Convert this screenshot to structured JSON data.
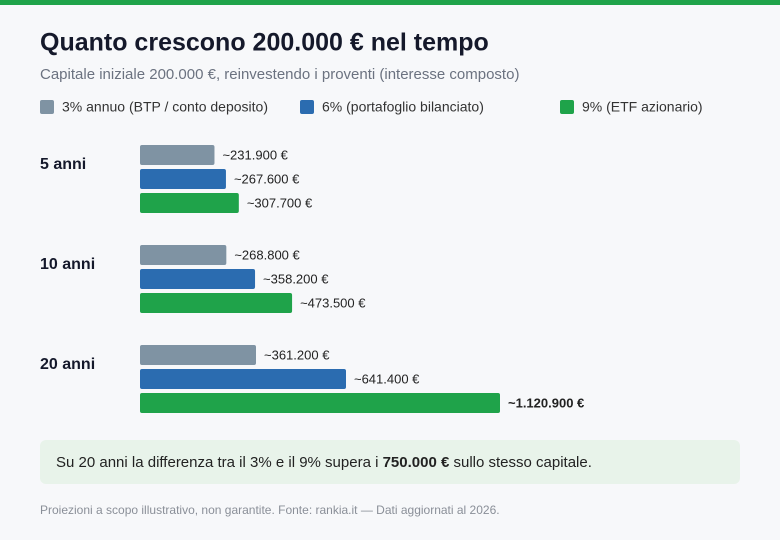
{
  "chart_data": {
    "type": "bar",
    "orientation": "horizontal",
    "title": "Quanto crescono 200.000 € nel tempo",
    "subtitle": "Capitale iniziale 200.000 €, reinvestendo i proventi (interesse composto)",
    "categories": [
      "5 anni",
      "10 anni",
      "20 anni"
    ],
    "series": [
      {
        "name": "3% annuo (BTP / conto deposito)",
        "color": "#7f93a3",
        "values": [
          231900,
          268800,
          361200
        ],
        "value_labels": [
          "~231.900 €",
          "~268.800 €",
          "~361.200 €"
        ]
      },
      {
        "name": "6% (portafoglio bilanciato)",
        "color": "#2b6cb0",
        "values": [
          267600,
          358200,
          641400
        ],
        "value_labels": [
          "~267.600 €",
          "~358.200 €",
          "~641.400 €"
        ]
      },
      {
        "name": "9% (ETF azionario)",
        "color": "#1fa34a",
        "values": [
          307700,
          473500,
          1120900
        ],
        "value_labels": [
          "~307.700 €",
          "~473.500 €",
          "~1.120.900 €"
        ]
      }
    ],
    "note": {
      "before": "Su 20 anni la differenza tra il 3% e il 9% supera i ",
      "bold": "750.000 €",
      "after": " sullo stesso capitale."
    },
    "footer": "Proiezioni a scopo illustrativo, non garantite. Fonte: rankia.it — Dati aggiornati al 2026."
  }
}
